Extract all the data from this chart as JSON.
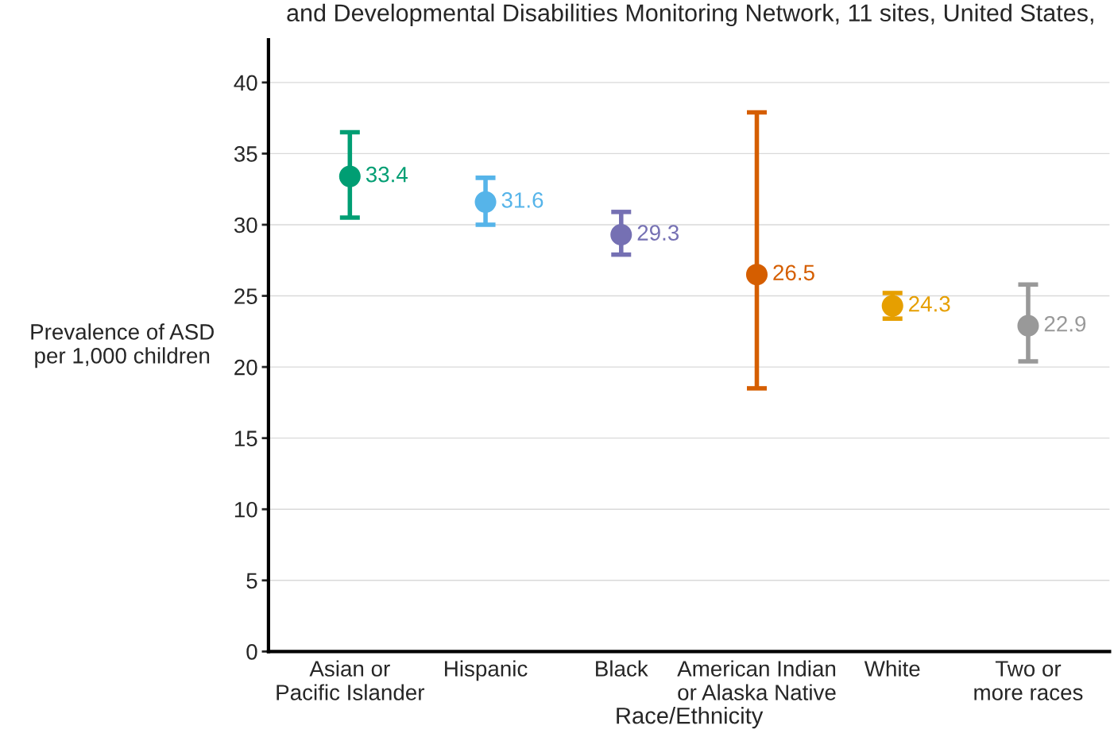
{
  "chart_data": {
    "type": "scatter",
    "title": "and Developmental Disabilities Monitoring Network, 11 sites, United States,",
    "xlabel": "Race/Ethnicity",
    "ylabel": "Prevalence of ASD\nper 1,000 children",
    "categories": [
      "Asian or\nPacific Islander",
      "Hispanic",
      "Black",
      "American Indian\nor Alaska Native",
      "White",
      "Two or\nmore races"
    ],
    "values": [
      33.4,
      31.6,
      29.3,
      26.5,
      24.3,
      22.9
    ],
    "errors": [
      [
        30.5,
        36.5
      ],
      [
        30.0,
        33.3
      ],
      [
        27.9,
        30.9
      ],
      [
        18.5,
        37.9
      ],
      [
        23.4,
        25.2
      ],
      [
        20.4,
        25.8
      ]
    ],
    "colors": [
      "#009e73",
      "#56b4e9",
      "#7570b3",
      "#d55e00",
      "#e69f00",
      "#999999"
    ],
    "ylim": [
      0,
      43
    ],
    "yticks": [
      0,
      5,
      10,
      15,
      20,
      25,
      30,
      35,
      40
    ],
    "grid": "y",
    "marker": "circle",
    "data_labels": true,
    "legend": false
  }
}
